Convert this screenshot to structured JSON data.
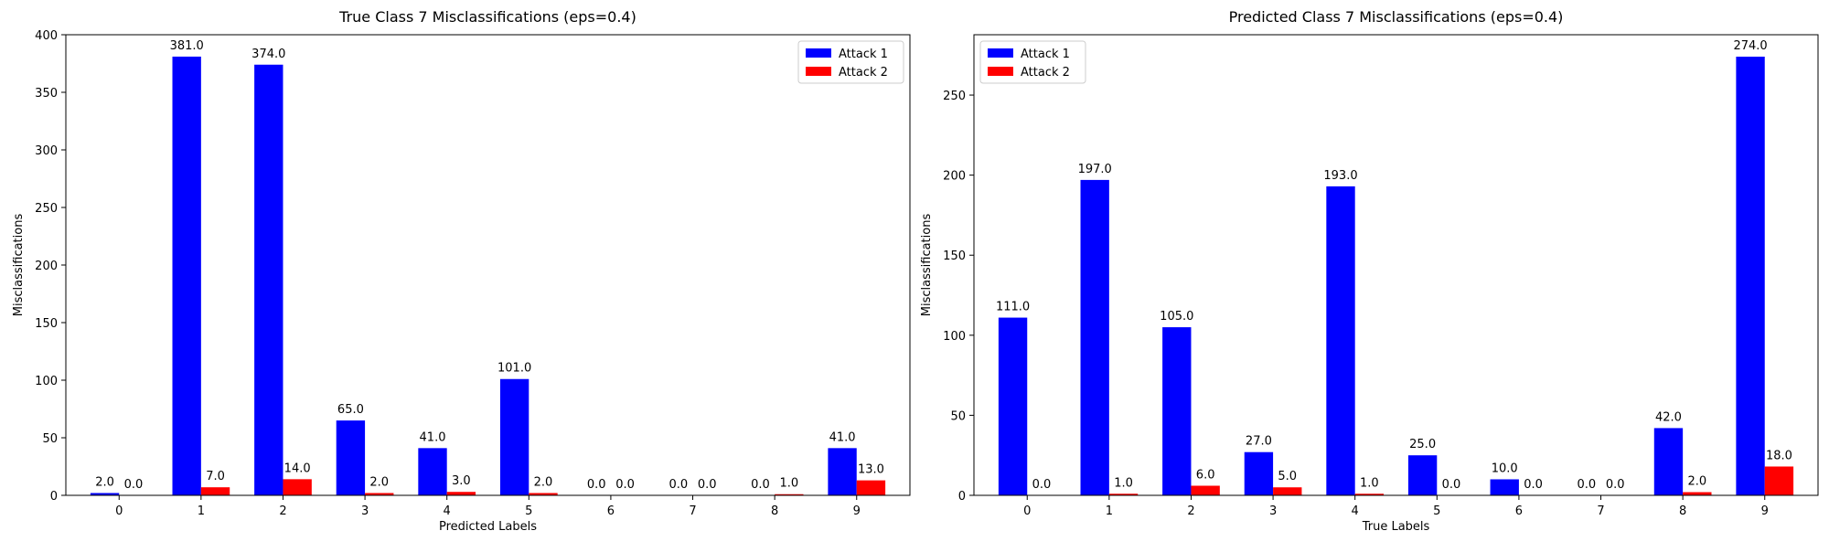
{
  "colors": {
    "attack1": "#0000ff",
    "attack2": "#ff0000"
  },
  "chart_data": [
    {
      "type": "bar",
      "title": "True Class 7 Misclassifications (eps=0.4)",
      "xlabel": "Predicted Labels",
      "ylabel": "Misclassifications",
      "categories": [
        "0",
        "1",
        "2",
        "3",
        "4",
        "5",
        "6",
        "7",
        "8",
        "9"
      ],
      "series": [
        {
          "name": "Attack 1",
          "values": [
            2.0,
            381.0,
            374.0,
            65.0,
            41.0,
            101.0,
            0.0,
            0.0,
            0.0,
            41.0
          ]
        },
        {
          "name": "Attack 2",
          "values": [
            0.0,
            7.0,
            14.0,
            2.0,
            3.0,
            2.0,
            0.0,
            0.0,
            1.0,
            13.0
          ]
        }
      ],
      "data_labels": {
        "attack1": [
          "2.0",
          "381.0",
          "374.0",
          "65.0",
          "41.0",
          "101.0",
          "0.0",
          "0.0",
          "0.0",
          "41.0"
        ],
        "attack2": [
          "0.0",
          "7.0",
          "14.0",
          "2.0",
          "3.0",
          "2.0",
          "0.0",
          "0.0",
          "1.0",
          "13.0"
        ]
      },
      "ylim": [
        0,
        400
      ],
      "yticks": [
        "0",
        "50",
        "100",
        "150",
        "200",
        "250",
        "300",
        "350",
        "400"
      ],
      "legend": "upper right",
      "grid": false
    },
    {
      "type": "bar",
      "title": "Predicted Class 7 Misclassifications (eps=0.4)",
      "xlabel": "True Labels",
      "ylabel": "Misclassifications",
      "categories": [
        "0",
        "1",
        "2",
        "3",
        "4",
        "5",
        "6",
        "7",
        "8",
        "9"
      ],
      "series": [
        {
          "name": "Attack 1",
          "values": [
            111.0,
            197.0,
            105.0,
            27.0,
            193.0,
            25.0,
            10.0,
            0.0,
            42.0,
            274.0
          ]
        },
        {
          "name": "Attack 2",
          "values": [
            0.0,
            1.0,
            6.0,
            5.0,
            1.0,
            0.0,
            0.0,
            0.0,
            2.0,
            18.0
          ]
        }
      ],
      "data_labels": {
        "attack1": [
          "111.0",
          "197.0",
          "105.0",
          "27.0",
          "193.0",
          "25.0",
          "10.0",
          "0.0",
          "42.0",
          "274.0"
        ],
        "attack2": [
          "0.0",
          "1.0",
          "6.0",
          "5.0",
          "1.0",
          "0.0",
          "0.0",
          "0.0",
          "2.0",
          "18.0"
        ]
      },
      "ylim": [
        0,
        287.7
      ],
      "yticks": [
        "0",
        "50",
        "100",
        "150",
        "200",
        "250"
      ],
      "legend": "upper left",
      "grid": false
    }
  ]
}
